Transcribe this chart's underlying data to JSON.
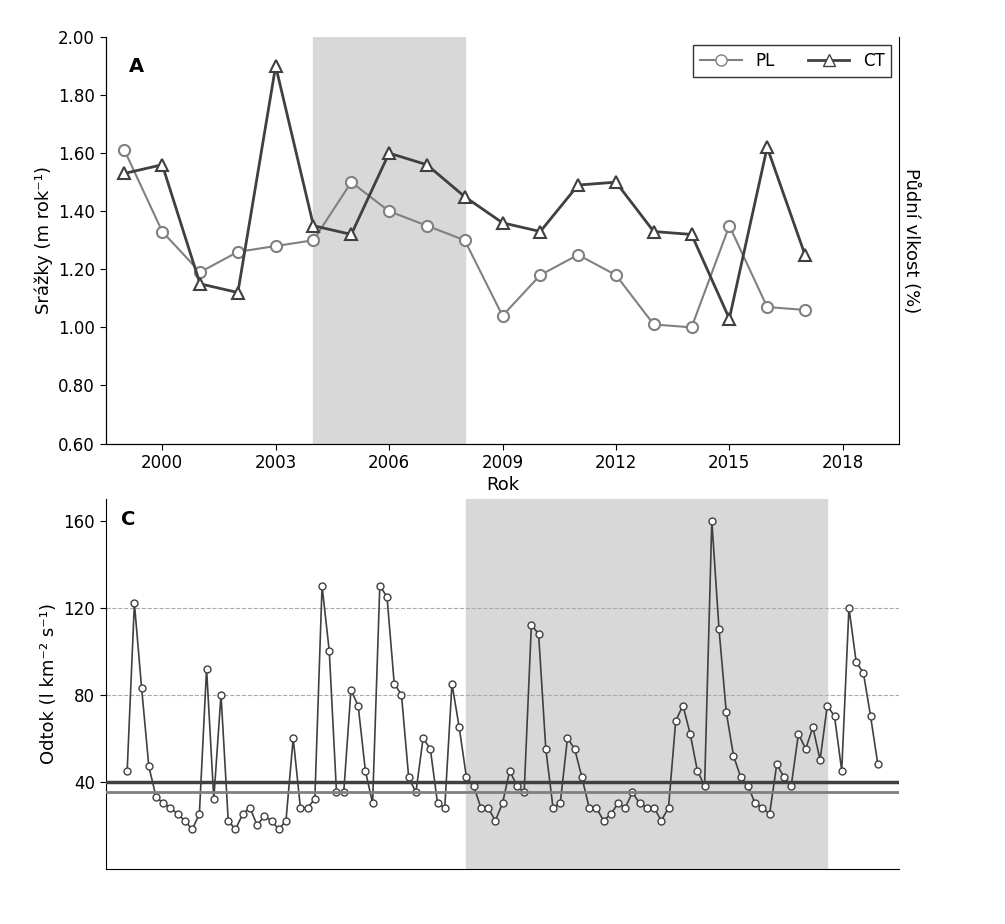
{
  "panel_A": {
    "label": "A",
    "years_PL": [
      1999,
      2000,
      2001,
      2002,
      2003,
      2004,
      2005,
      2006,
      2007,
      2008,
      2009,
      2010,
      2011,
      2012,
      2013,
      2014,
      2015,
      2016,
      2017
    ],
    "PL": [
      1.61,
      1.33,
      1.19,
      1.26,
      1.28,
      1.3,
      1.5,
      1.4,
      1.35,
      1.3,
      1.04,
      1.18,
      1.25,
      1.18,
      1.01,
      1.0,
      1.35,
      1.07,
      1.06
    ],
    "years_CT": [
      1999,
      2000,
      2001,
      2002,
      2003,
      2004,
      2005,
      2006,
      2007,
      2008,
      2009,
      2010,
      2011,
      2012,
      2013,
      2014,
      2015,
      2016,
      2017
    ],
    "CT": [
      1.53,
      1.56,
      1.15,
      1.12,
      1.9,
      1.35,
      1.32,
      1.6,
      1.56,
      1.45,
      1.36,
      1.33,
      1.49,
      1.5,
      1.33,
      1.32,
      1.03,
      1.62,
      1.25
    ],
    "shade_start": 2004,
    "shade_end": 2008,
    "ylabel": "Srážky (m rok⁻¹)",
    "ylabel_right": "Půdní vlkost (%)",
    "ylim": [
      0.6,
      2.0
    ],
    "yticks": [
      0.6,
      0.8,
      1.0,
      1.2,
      1.4,
      1.6,
      1.8,
      2.0
    ],
    "xlim": [
      1998.5,
      2019.5
    ],
    "xticks": [
      2000,
      2003,
      2006,
      2009,
      2012,
      2015,
      2018
    ],
    "line_color_PL": "#808080",
    "line_color_CT": "#404040",
    "shade_color": "#d8d8d8"
  },
  "panel_C": {
    "label": "C",
    "ylabel": "Odtok (l km⁻² s⁻¹)",
    "shade_start": 2008.5,
    "shade_end": 2018.5,
    "ylim": [
      0,
      170
    ],
    "yticks": [
      40,
      80,
      120,
      160
    ],
    "xlim": [
      1998.5,
      2020.5
    ],
    "hline1": 40,
    "hline2": 35,
    "hline_color1": "#404040",
    "hline_color2": "#808080",
    "shade_color": "#d8d8d8",
    "line_color": "#404040"
  },
  "xlabel": "Rok",
  "background_color": "#ffffff",
  "panel_C_data_x": [
    1999.1,
    1999.3,
    1999.5,
    1999.7,
    1999.9,
    2000.1,
    2000.3,
    2000.5,
    2000.7,
    2000.9,
    2001.1,
    2001.3,
    2001.5,
    2001.7,
    2001.9,
    2002.1,
    2002.3,
    2002.5,
    2002.7,
    2002.9,
    2003.1,
    2003.3,
    2003.5,
    2003.7,
    2003.9,
    2004.1,
    2004.3,
    2004.5,
    2004.7,
    2004.9,
    2005.1,
    2005.3,
    2005.5,
    2005.7,
    2005.9,
    2006.1,
    2006.3,
    2006.5,
    2006.7,
    2006.9,
    2007.1,
    2007.3,
    2007.5,
    2007.7,
    2007.9,
    2008.1,
    2008.3,
    2008.5,
    2008.7,
    2008.9,
    2009.1,
    2009.3,
    2009.5,
    2009.7,
    2009.9,
    2010.1,
    2010.3,
    2010.5,
    2010.7,
    2010.9,
    2011.1,
    2011.3,
    2011.5,
    2011.7,
    2011.9,
    2012.1,
    2012.3,
    2012.5,
    2012.7,
    2012.9,
    2013.1,
    2013.3,
    2013.5,
    2013.7,
    2013.9,
    2014.1,
    2014.3,
    2014.5,
    2014.7,
    2014.9,
    2015.1,
    2015.3,
    2015.5,
    2015.7,
    2015.9,
    2016.1,
    2016.3,
    2016.5,
    2016.7,
    2016.9,
    2017.1,
    2017.3,
    2017.5,
    2017.7,
    2017.9,
    2018.1,
    2018.3,
    2018.5,
    2018.7,
    2018.9,
    2019.1,
    2019.3,
    2019.5,
    2019.7,
    2019.9
  ],
  "panel_C_data_y": [
    45,
    122,
    83,
    47,
    33,
    30,
    28,
    25,
    22,
    18,
    25,
    92,
    32,
    80,
    22,
    18,
    25,
    28,
    20,
    24,
    22,
    18,
    22,
    60,
    28,
    28,
    32,
    130,
    100,
    35,
    35,
    82,
    75,
    45,
    30,
    130,
    125,
    85,
    80,
    42,
    35,
    60,
    55,
    30,
    28,
    85,
    65,
    42,
    38,
    28,
    28,
    22,
    30,
    45,
    38,
    35,
    112,
    108,
    55,
    28,
    30,
    60,
    55,
    42,
    28,
    28,
    22,
    25,
    30,
    28,
    35,
    30,
    28,
    28,
    22,
    28,
    68,
    75,
    62,
    45,
    38,
    160,
    110,
    72,
    52,
    42,
    38,
    30,
    28,
    25,
    48,
    42,
    38,
    62,
    55,
    65,
    50,
    75,
    70,
    45,
    120,
    95,
    90,
    70,
    48
  ]
}
